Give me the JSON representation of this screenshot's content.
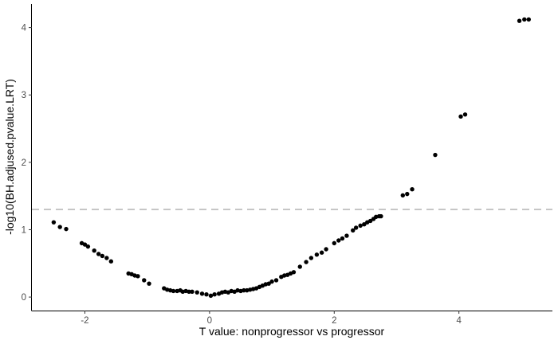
{
  "chart_data": {
    "type": "scatter",
    "xlabel": "T value: nonprogressor vs progressor",
    "ylabel": "-log10(BH.adjused.pvalue.LRT)",
    "xlim": [
      -2.85,
      5.5
    ],
    "ylim": [
      -0.2,
      4.35
    ],
    "x_ticks": [
      -2,
      0,
      2,
      4
    ],
    "y_ticks": [
      0,
      1,
      2,
      3,
      4
    ],
    "grid": false,
    "point_color": "#000000",
    "threshold": {
      "y": 1.301,
      "style": "dashed",
      "color": "#b3b3b3"
    },
    "points": [
      {
        "x": -2.5,
        "y": 1.11
      },
      {
        "x": -2.4,
        "y": 1.04
      },
      {
        "x": -2.3,
        "y": 1.01
      },
      {
        "x": -2.05,
        "y": 0.8
      },
      {
        "x": -2.0,
        "y": 0.78
      },
      {
        "x": -1.95,
        "y": 0.75
      },
      {
        "x": -1.85,
        "y": 0.69
      },
      {
        "x": -1.78,
        "y": 0.64
      },
      {
        "x": -1.72,
        "y": 0.61
      },
      {
        "x": -1.65,
        "y": 0.58
      },
      {
        "x": -1.58,
        "y": 0.53
      },
      {
        "x": -1.3,
        "y": 0.35
      },
      {
        "x": -1.25,
        "y": 0.34
      },
      {
        "x": -1.2,
        "y": 0.32
      },
      {
        "x": -1.15,
        "y": 0.31
      },
      {
        "x": -1.05,
        "y": 0.25
      },
      {
        "x": -0.97,
        "y": 0.2
      },
      {
        "x": -0.73,
        "y": 0.13
      },
      {
        "x": -0.68,
        "y": 0.11
      },
      {
        "x": -0.63,
        "y": 0.1
      },
      {
        "x": -0.58,
        "y": 0.09
      },
      {
        "x": -0.52,
        "y": 0.09
      },
      {
        "x": -0.47,
        "y": 0.1
      },
      {
        "x": -0.43,
        "y": 0.08
      },
      {
        "x": -0.38,
        "y": 0.09
      },
      {
        "x": -0.33,
        "y": 0.08
      },
      {
        "x": -0.28,
        "y": 0.08
      },
      {
        "x": -0.2,
        "y": 0.07
      },
      {
        "x": -0.12,
        "y": 0.05
      },
      {
        "x": -0.05,
        "y": 0.04
      },
      {
        "x": 0.02,
        "y": 0.02
      },
      {
        "x": 0.08,
        "y": 0.04
      },
      {
        "x": 0.15,
        "y": 0.05
      },
      {
        "x": 0.2,
        "y": 0.07
      },
      {
        "x": 0.25,
        "y": 0.08
      },
      {
        "x": 0.3,
        "y": 0.07
      },
      {
        "x": 0.35,
        "y": 0.09
      },
      {
        "x": 0.4,
        "y": 0.08
      },
      {
        "x": 0.45,
        "y": 0.1
      },
      {
        "x": 0.5,
        "y": 0.09
      },
      {
        "x": 0.55,
        "y": 0.1
      },
      {
        "x": 0.6,
        "y": 0.1
      },
      {
        "x": 0.65,
        "y": 0.11
      },
      {
        "x": 0.7,
        "y": 0.12
      },
      {
        "x": 0.75,
        "y": 0.13
      },
      {
        "x": 0.8,
        "y": 0.15
      },
      {
        "x": 0.85,
        "y": 0.17
      },
      {
        "x": 0.9,
        "y": 0.19
      },
      {
        "x": 0.95,
        "y": 0.2
      },
      {
        "x": 1.0,
        "y": 0.23
      },
      {
        "x": 1.07,
        "y": 0.25
      },
      {
        "x": 1.15,
        "y": 0.3
      },
      {
        "x": 1.2,
        "y": 0.32
      },
      {
        "x": 1.25,
        "y": 0.33
      },
      {
        "x": 1.3,
        "y": 0.35
      },
      {
        "x": 1.35,
        "y": 0.37
      },
      {
        "x": 1.45,
        "y": 0.45
      },
      {
        "x": 1.55,
        "y": 0.52
      },
      {
        "x": 1.63,
        "y": 0.58
      },
      {
        "x": 1.72,
        "y": 0.63
      },
      {
        "x": 1.8,
        "y": 0.66
      },
      {
        "x": 1.87,
        "y": 0.71
      },
      {
        "x": 2.0,
        "y": 0.8
      },
      {
        "x": 2.07,
        "y": 0.84
      },
      {
        "x": 2.13,
        "y": 0.87
      },
      {
        "x": 2.2,
        "y": 0.91
      },
      {
        "x": 2.3,
        "y": 0.99
      },
      {
        "x": 2.35,
        "y": 1.03
      },
      {
        "x": 2.42,
        "y": 1.06
      },
      {
        "x": 2.48,
        "y": 1.08
      },
      {
        "x": 2.53,
        "y": 1.11
      },
      {
        "x": 2.58,
        "y": 1.13
      },
      {
        "x": 2.63,
        "y": 1.16
      },
      {
        "x": 2.67,
        "y": 1.19
      },
      {
        "x": 2.72,
        "y": 1.2
      },
      {
        "x": 2.75,
        "y": 1.2
      },
      {
        "x": 3.1,
        "y": 1.51
      },
      {
        "x": 3.17,
        "y": 1.53
      },
      {
        "x": 3.25,
        "y": 1.6
      },
      {
        "x": 3.62,
        "y": 2.11
      },
      {
        "x": 4.03,
        "y": 2.68
      },
      {
        "x": 4.1,
        "y": 2.71
      },
      {
        "x": 4.97,
        "y": 4.1
      },
      {
        "x": 5.05,
        "y": 4.12
      },
      {
        "x": 5.12,
        "y": 4.12
      }
    ]
  }
}
